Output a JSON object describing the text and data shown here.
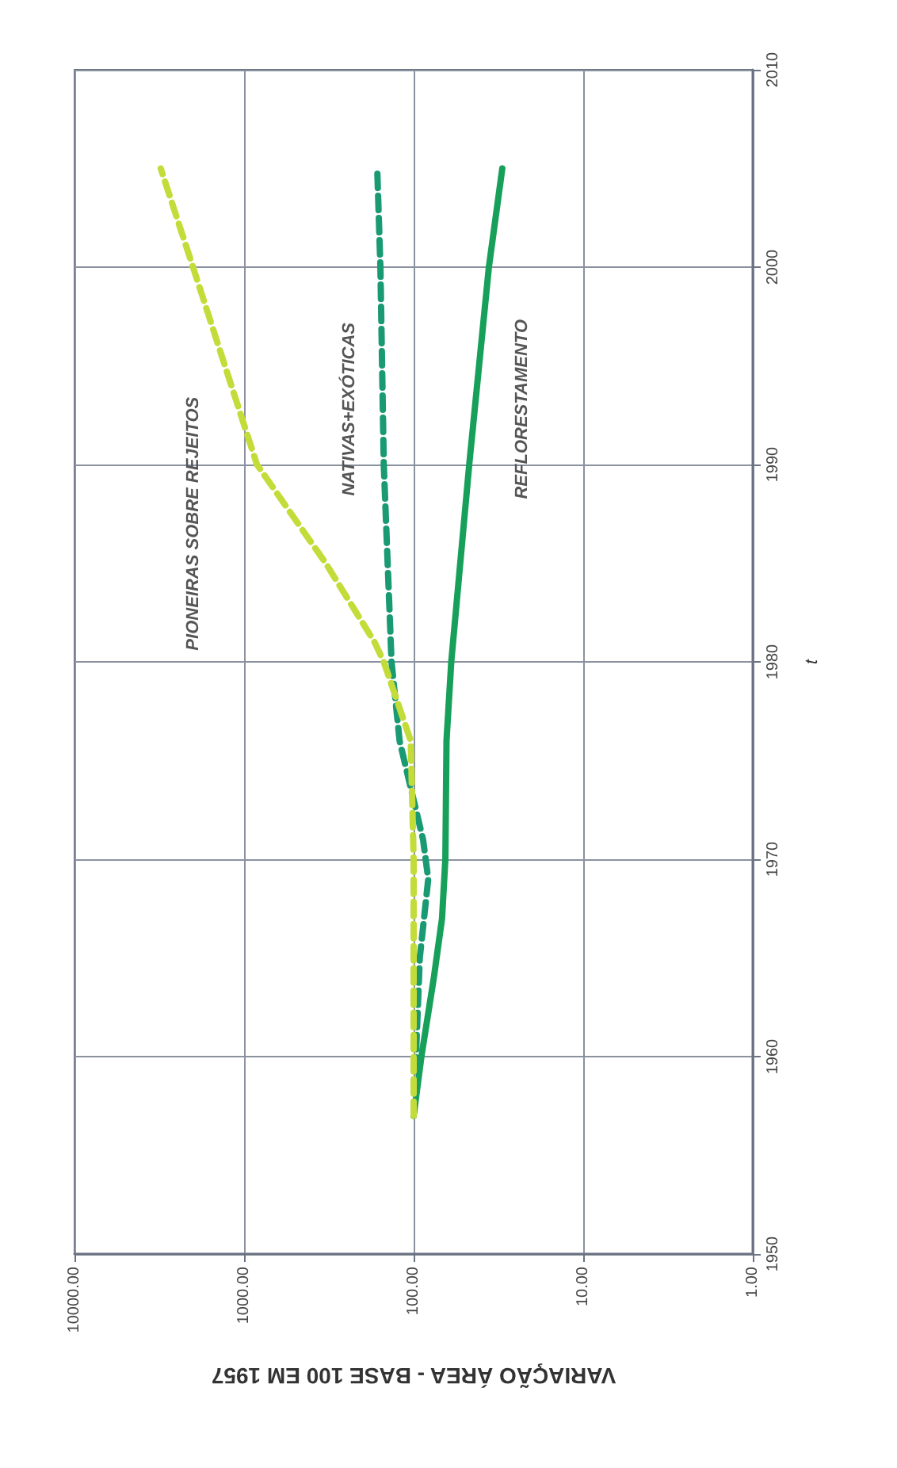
{
  "chart_data": {
    "type": "line",
    "xlabel": "VARIAÇÃO ÁREA - BASE 100 EM 1957",
    "ylabel": "t",
    "log": "x",
    "grid": true,
    "legend": false,
    "marker": "none",
    "xlim": [
      10000,
      1
    ],
    "xticks": [
      {
        "value": 10000,
        "label": "10000.00"
      },
      {
        "value": 1000,
        "label": "1000.00"
      },
      {
        "value": 100,
        "label": "100.00"
      },
      {
        "value": 10,
        "label": "10.00"
      },
      {
        "value": 1,
        "label": "1.00"
      }
    ],
    "ylim": [
      1950,
      2010
    ],
    "yticks": [
      1950,
      1960,
      1970,
      1980,
      1990,
      2000,
      2010
    ],
    "series": [
      {
        "name": "PIONEIRAS SOBRE REJEITOS",
        "color": "#c4dc3a",
        "line_style": "dashed",
        "x": [
          100,
          100,
          104,
          150,
          170,
          330,
          840,
          2000,
          3100
        ],
        "values": [
          1957,
          1970,
          1976,
          1980,
          1981,
          1985,
          1990,
          2000,
          2005
        ]
      },
      {
        "name": "NATIVAS+EXÓTICAS",
        "color": "#1a9a72",
        "line_style": "dashed",
        "x": [
          100,
          92,
          82,
          88,
          100,
          121,
          135,
          150,
          157,
          164
        ],
        "values": [
          1957,
          1965,
          1969,
          1971,
          1973,
          1976,
          1980,
          1990,
          2000,
          2005
        ]
      },
      {
        "name": "REFLORESTAMENTO",
        "color": "#17a05a",
        "line_style": "solid",
        "x": [
          100,
          90,
          76,
          68,
          65,
          64,
          60,
          47,
          36,
          30
        ],
        "values": [
          1957,
          1960,
          1964,
          1967,
          1970,
          1976,
          1980,
          1990,
          2000,
          2005
        ]
      }
    ]
  }
}
